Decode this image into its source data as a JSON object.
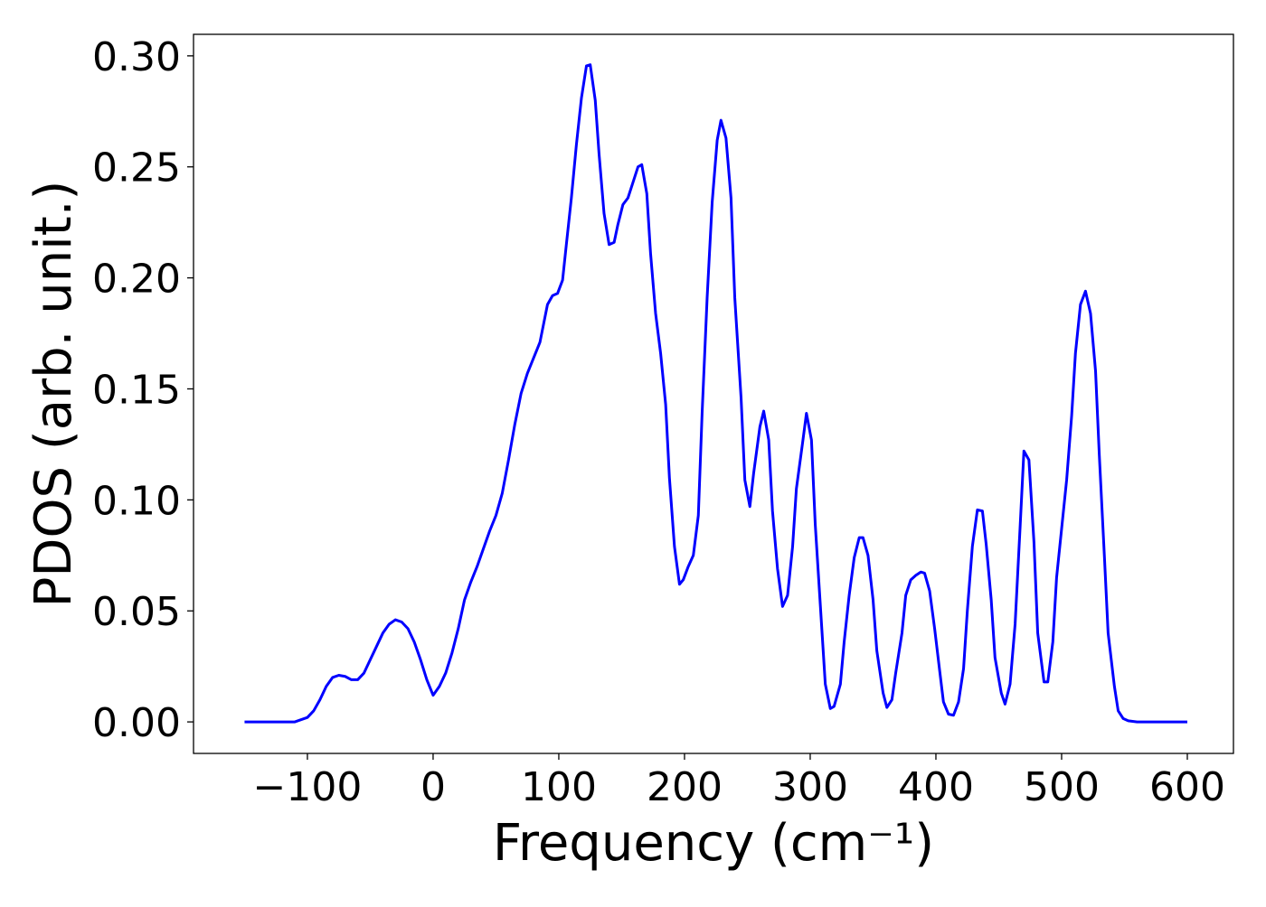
{
  "chart_data": {
    "type": "line",
    "x_label": "Frequency (cm⁻¹)",
    "y_label": "PDOS (arb. unit.)",
    "color": "#0000ff",
    "x": [
      -150,
      -110,
      -100,
      -95,
      -90,
      -85,
      -80,
      -75,
      -70,
      -65,
      -60,
      -55,
      -50,
      -45,
      -40,
      -35,
      -30,
      -25,
      -20,
      -15,
      -10,
      -5,
      0,
      5,
      10,
      15,
      20,
      25,
      30,
      35,
      40,
      45,
      50,
      55,
      60,
      65,
      70,
      75,
      80,
      85,
      91,
      95,
      99,
      103,
      106,
      110,
      114,
      118,
      122,
      125,
      129,
      132,
      136,
      140,
      144,
      147,
      151,
      155,
      159,
      163,
      166,
      170,
      173,
      177,
      181,
      185,
      188,
      192,
      196,
      199,
      203,
      207,
      211,
      214,
      218,
      222,
      226,
      229,
      233,
      237,
      240,
      245,
      248,
      252,
      255,
      260,
      263,
      267,
      270,
      274,
      278,
      282,
      286,
      289,
      294,
      297,
      301,
      304,
      309,
      312,
      316,
      319,
      324,
      327,
      331,
      335,
      339,
      342,
      346,
      350,
      353,
      358,
      361,
      365,
      368,
      373,
      376,
      380,
      384,
      388,
      391,
      395,
      399,
      403,
      406,
      410,
      414,
      418,
      422,
      425,
      429,
      433,
      437,
      440,
      444,
      447,
      452,
      455,
      459,
      463,
      467,
      470,
      474,
      478,
      481,
      486,
      489,
      493,
      496,
      500,
      504,
      508,
      511,
      515,
      519,
      523,
      527,
      530,
      534,
      537,
      542,
      545,
      549,
      553,
      560,
      600
    ],
    "values": [
      0,
      0,
      0.002,
      0.005,
      0.01,
      0.016,
      0.02,
      0.021,
      0.0205,
      0.019,
      0.019,
      0.022,
      0.028,
      0.034,
      0.04,
      0.044,
      0.046,
      0.045,
      0.042,
      0.036,
      0.028,
      0.019,
      0.012,
      0.016,
      0.022,
      0.031,
      0.042,
      0.055,
      0.063,
      0.07,
      0.078,
      0.086,
      0.093,
      0.103,
      0.118,
      0.134,
      0.148,
      0.157,
      0.164,
      0.171,
      0.188,
      0.192,
      0.193,
      0.199,
      0.215,
      0.236,
      0.26,
      0.281,
      0.2955,
      0.296,
      0.28,
      0.256,
      0.229,
      0.215,
      0.216,
      0.224,
      0.233,
      0.236,
      0.243,
      0.25,
      0.251,
      0.238,
      0.211,
      0.184,
      0.166,
      0.143,
      0.11,
      0.079,
      0.062,
      0.064,
      0.07,
      0.075,
      0.093,
      0.139,
      0.191,
      0.234,
      0.262,
      0.271,
      0.263,
      0.236,
      0.191,
      0.146,
      0.109,
      0.097,
      0.112,
      0.133,
      0.14,
      0.127,
      0.095,
      0.069,
      0.052,
      0.057,
      0.079,
      0.105,
      0.126,
      0.139,
      0.127,
      0.089,
      0.044,
      0.017,
      0.006,
      0.007,
      0.017,
      0.036,
      0.057,
      0.074,
      0.083,
      0.083,
      0.075,
      0.055,
      0.032,
      0.013,
      0.0065,
      0.01,
      0.022,
      0.04,
      0.057,
      0.064,
      0.066,
      0.0675,
      0.067,
      0.059,
      0.042,
      0.023,
      0.009,
      0.0035,
      0.003,
      0.009,
      0.024,
      0.05,
      0.079,
      0.0955,
      0.095,
      0.08,
      0.055,
      0.029,
      0.013,
      0.008,
      0.017,
      0.044,
      0.088,
      0.122,
      0.118,
      0.081,
      0.04,
      0.018,
      0.018,
      0.036,
      0.065,
      0.087,
      0.109,
      0.138,
      0.166,
      0.188,
      0.194,
      0.184,
      0.158,
      0.12,
      0.075,
      0.04,
      0.016,
      0.005,
      0.0015,
      0.0005,
      0,
      0
    ],
    "xlim": [
      -190.6,
      636.7
    ],
    "ylim": [
      -0.0142,
      0.3097
    ],
    "xticks": [
      {
        "value": -100,
        "label": "−100"
      },
      0,
      100,
      200,
      300,
      400,
      500,
      600
    ],
    "yticks": [
      {
        "value": 0,
        "label": "0.00"
      },
      {
        "value": 0.05,
        "label": "0.05"
      },
      {
        "value": 0.1,
        "label": "0.10"
      },
      {
        "value": 0.15,
        "label": "0.15"
      },
      {
        "value": 0.2,
        "label": "0.20"
      },
      {
        "value": 0.25,
        "label": "0.25"
      },
      {
        "value": 0.3,
        "label": "0.30"
      }
    ],
    "grid": false
  }
}
